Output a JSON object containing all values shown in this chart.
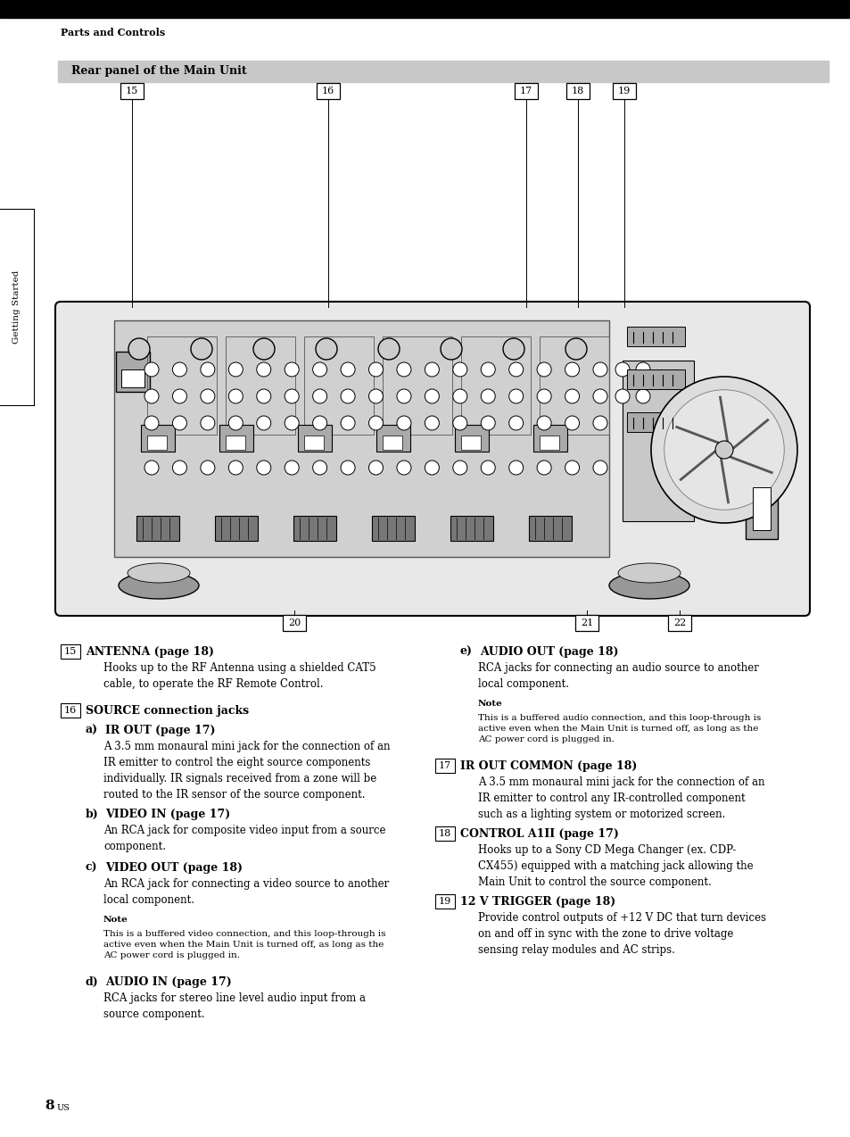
{
  "page_bg": "#ffffff",
  "top_bar_color": "#000000",
  "header_text": "Parts and Controls",
  "section_bar_color": "#c8c8c8",
  "section_text": "Rear panel of the Main Unit",
  "side_tab_text": "Getting Started",
  "page_number": "8",
  "left_col": [
    {
      "type": "num_head",
      "num": "15",
      "head": "ANTENNA (page 18)",
      "body": "Hooks up to the RF Antenna using a shielded CAT5\ncable, to operate the RF Remote Control."
    },
    {
      "type": "num_head",
      "num": "16",
      "head": "SOURCE connection jacks",
      "body": ""
    },
    {
      "type": "sub_head",
      "sub": "a)",
      "head": "IR OUT (page 17)",
      "body": "A 3.5 mm monaural mini jack for the connection of an\nIR emitter to control the eight source components\nindividually. IR signals received from a zone will be\nrouted to the IR sensor of the source component."
    },
    {
      "type": "sub_head",
      "sub": "b)",
      "head": "VIDEO IN (page 17)",
      "body": "An RCA jack for composite video input from a source\ncomponent."
    },
    {
      "type": "sub_head",
      "sub": "c)",
      "head": "VIDEO OUT (page 18)",
      "body": "An RCA jack for connecting a video source to another\nlocal component."
    },
    {
      "type": "note",
      "label": "Note",
      "body": "This is a buffered video connection, and this loop-through is\nactive even when the Main Unit is turned off, as long as the\nAC power cord is plugged in."
    },
    {
      "type": "sub_head",
      "sub": "d)",
      "head": "AUDIO IN (page 17)",
      "body": "RCA jacks for stereo line level audio input from a\nsource component."
    }
  ],
  "right_col": [
    {
      "type": "sub_head",
      "sub": "e)",
      "head": "AUDIO OUT (page 18)",
      "body": "RCA jacks for connecting an audio source to another\nlocal component."
    },
    {
      "type": "note",
      "label": "Note",
      "body": "This is a buffered audio connection, and this loop-through is\nactive even when the Main Unit is turned off, as long as the\nAC power cord is plugged in."
    },
    {
      "type": "num_head",
      "num": "17",
      "head": "IR OUT COMMON (page 18)",
      "body": "A 3.5 mm monaural mini jack for the connection of an\nIR emitter to control any IR-controlled component\nsuch as a lighting system or motorized screen."
    },
    {
      "type": "num_head",
      "num": "18",
      "head": "CONTROL A1II (page 17)",
      "body": "Hooks up to a Sony CD Mega Changer (ex. CDP-\nCX455) equipped with a matching jack allowing the\nMain Unit to control the source component."
    },
    {
      "type": "num_head",
      "num": "19",
      "head": "12 V TRIGGER (page 18)",
      "body": "Provide control outputs of +12 V DC that turn devices\non and off in sync with the zone to drive voltage\nsensing relay modules and AC strips."
    }
  ]
}
